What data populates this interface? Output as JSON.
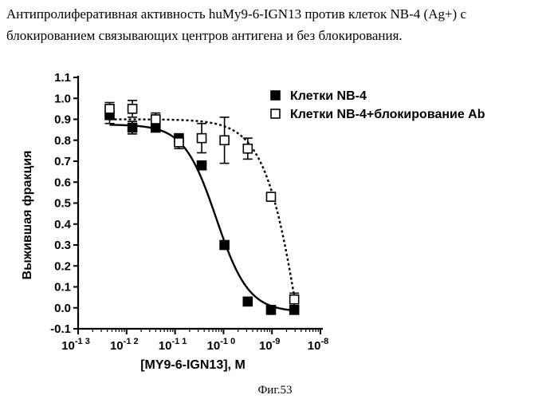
{
  "description": {
    "line1": "Антипролиферативная активность huMy9-6-IGN13 против клеток NB-4 (Ag+) с",
    "line2": "блокированием связывающих центров антигена и без блокирования."
  },
  "figure_label": "Фиг.53",
  "chart_data": {
    "type": "scatter",
    "x_scale": "log10",
    "xlabel": "[MY9-6-IGN13], M",
    "ylabel": "Выжившая фракция",
    "xlim": [
      -13,
      -8
    ],
    "ylim": [
      -0.1,
      1.1
    ],
    "x_ticks": [
      {
        "exp": -13,
        "base": "10",
        "sup": "-1 3"
      },
      {
        "exp": -12,
        "base": "10",
        "sup": "-1 2"
      },
      {
        "exp": -11,
        "base": "10",
        "sup": "-1 1"
      },
      {
        "exp": -10,
        "base": "10",
        "sup": "-1 0"
      },
      {
        "exp": -9,
        "base": "10",
        "sup": "-9"
      },
      {
        "exp": -8,
        "base": "10",
        "sup": "-8"
      }
    ],
    "y_ticks": [
      "-0.1",
      "0.0",
      "0.1",
      "0.2",
      "0.3",
      "0.4",
      "0.5",
      "0.6",
      "0.7",
      "0.8",
      "0.9",
      "1.0",
      "1.1"
    ],
    "legend_position": "top-right",
    "series": [
      {
        "name": "Клетки NB-4",
        "marker": "filled-square",
        "line": "solid",
        "color": "#000000",
        "points": [
          {
            "x": -12.35,
            "y": 0.92,
            "err": 0.04
          },
          {
            "x": -11.88,
            "y": 0.86,
            "err": 0.03
          },
          {
            "x": -11.4,
            "y": 0.86,
            "err": 0.02
          },
          {
            "x": -10.92,
            "y": 0.81,
            "err": 0.01
          },
          {
            "x": -10.45,
            "y": 0.68,
            "err": 0.02
          },
          {
            "x": -9.98,
            "y": 0.3,
            "err": 0.02
          },
          {
            "x": -9.5,
            "y": 0.03,
            "err": 0.01
          },
          {
            "x": -9.02,
            "y": -0.01,
            "err": 0.0
          },
          {
            "x": -8.54,
            "y": -0.01,
            "err": 0.0
          }
        ],
        "fit": {
          "top": 0.875,
          "bottom": -0.02,
          "log_ec50": -10.15,
          "hill": 1.3
        }
      },
      {
        "name": "Клетки NB-4+блокирование Ab",
        "marker": "open-square",
        "line": "dashed",
        "color": "#000000",
        "points": [
          {
            "x": -12.35,
            "y": 0.95,
            "err": 0.03
          },
          {
            "x": -11.88,
            "y": 0.95,
            "err": 0.04
          },
          {
            "x": -11.4,
            "y": 0.9,
            "err": 0.03
          },
          {
            "x": -10.92,
            "y": 0.79,
            "err": 0.03
          },
          {
            "x": -10.45,
            "y": 0.81,
            "err": 0.07
          },
          {
            "x": -9.98,
            "y": 0.8,
            "err": 0.11
          },
          {
            "x": -9.5,
            "y": 0.76,
            "err": 0.05
          },
          {
            "x": -9.02,
            "y": 0.53,
            "err": 0.02
          },
          {
            "x": -8.54,
            "y": 0.04,
            "err": 0.03
          }
        ],
        "fit": {
          "top": 0.9,
          "bottom": -1.5,
          "log_ec50": -8.3,
          "hill": 1.1,
          "x_end": -8.54
        }
      }
    ]
  }
}
